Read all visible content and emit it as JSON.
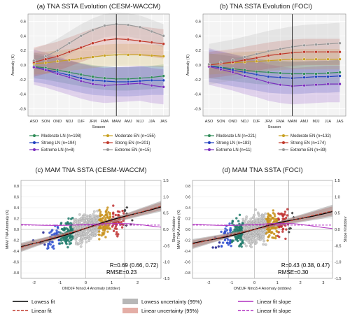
{
  "chart_data": [
    {
      "id": "a",
      "type": "line",
      "title": "(a) TNA SSTA Evolution (CESM-WACCM)",
      "xlabel": "Season",
      "ylabel": "Anomaly (K)",
      "categories": [
        "ASO",
        "SON",
        "OND",
        "NDJ",
        "DJF",
        "JFM",
        "FMA",
        "MAM",
        "AMJ",
        "MJJ",
        "JJA",
        "JAS"
      ],
      "ylim": [
        -0.7,
        0.7
      ],
      "yticks": [
        -0.6,
        -0.4,
        -0.2,
        0.0,
        0.2,
        0.4,
        0.6
      ],
      "vline_at": "MAM",
      "series": [
        {
          "name": "Moderate LN (n=198)",
          "color": "#2e8b57",
          "values": [
            -0.02,
            -0.04,
            -0.07,
            -0.1,
            -0.13,
            -0.16,
            -0.18,
            -0.19,
            -0.19,
            -0.18,
            -0.17,
            -0.15
          ],
          "spread": 0.16
        },
        {
          "name": "Strong LN (n=194)",
          "color": "#1f3fbf",
          "values": [
            -0.03,
            -0.06,
            -0.1,
            -0.14,
            -0.18,
            -0.21,
            -0.22,
            -0.23,
            -0.23,
            -0.22,
            -0.21,
            -0.21
          ],
          "spread": 0.2
        },
        {
          "name": "Extreme LN (n=8)",
          "color": "#7b2fbe",
          "values": [
            -0.03,
            -0.07,
            -0.12,
            -0.17,
            -0.22,
            -0.26,
            -0.28,
            -0.27,
            -0.26,
            -0.25,
            -0.28,
            -0.3
          ],
          "spread": 0.24
        },
        {
          "name": "Moderate EN (n=155)",
          "color": "#c8a020",
          "values": [
            0.02,
            0.03,
            0.05,
            0.07,
            0.09,
            0.11,
            0.13,
            0.14,
            0.14,
            0.14,
            0.13,
            0.12
          ],
          "spread": 0.15
        },
        {
          "name": "Strong EN (n=201)",
          "color": "#c0392b",
          "values": [
            0.04,
            0.08,
            0.12,
            0.18,
            0.24,
            0.3,
            0.34,
            0.36,
            0.35,
            0.33,
            0.31,
            0.29
          ],
          "spread": 0.2
        },
        {
          "name": "Extreme EN (n=15)",
          "color": "#999999",
          "values": [
            0.06,
            0.12,
            0.2,
            0.3,
            0.4,
            0.48,
            0.54,
            0.56,
            0.55,
            0.52,
            0.46,
            0.4
          ],
          "spread": 0.16
        }
      ]
    },
    {
      "id": "b",
      "type": "line",
      "title": "(b) TNA SSTA Evolution (FOCI)",
      "xlabel": "Season",
      "ylabel": "Anomaly (K)",
      "categories": [
        "ASO",
        "SON",
        "OND",
        "NDJ",
        "DJF",
        "JFM",
        "FMA",
        "MAM",
        "AMJ",
        "MJJ",
        "JJA",
        "JAS"
      ],
      "ylim": [
        -0.7,
        0.7
      ],
      "yticks": [
        -0.6,
        -0.4,
        -0.2,
        0.0,
        0.2,
        0.4,
        0.6
      ],
      "vline_at": "MAM",
      "series": [
        {
          "name": "Moderate LN (n=221)",
          "color": "#2e8b57",
          "values": [
            -0.01,
            -0.03,
            -0.05,
            -0.07,
            -0.09,
            -0.1,
            -0.11,
            -0.12,
            -0.12,
            -0.12,
            -0.11,
            -0.1
          ],
          "spread": 0.17
        },
        {
          "name": "Strong LN (n=183)",
          "color": "#1f3fbf",
          "values": [
            -0.01,
            -0.04,
            -0.07,
            -0.1,
            -0.13,
            -0.16,
            -0.17,
            -0.18,
            -0.17,
            -0.16,
            -0.16,
            -0.15
          ],
          "spread": 0.22
        },
        {
          "name": "Extreme LN (n=11)",
          "color": "#7b2fbe",
          "values": [
            -0.02,
            -0.06,
            -0.1,
            -0.15,
            -0.19,
            -0.24,
            -0.27,
            -0.29,
            -0.28,
            -0.27,
            -0.26,
            -0.26
          ],
          "spread": 0.25
        },
        {
          "name": "Moderate EN (n=132)",
          "color": "#c8a020",
          "values": [
            0.01,
            0.02,
            0.03,
            0.04,
            0.05,
            0.06,
            0.07,
            0.08,
            0.08,
            0.08,
            0.08,
            0.08
          ],
          "spread": 0.14
        },
        {
          "name": "Strong EN (n=174)",
          "color": "#c0392b",
          "values": [
            0.0,
            0.02,
            0.04,
            0.07,
            0.1,
            0.13,
            0.15,
            0.17,
            0.18,
            0.18,
            0.18,
            0.18
          ],
          "spread": 0.18
        },
        {
          "name": "Extreme EN (n=39)",
          "color": "#999999",
          "values": [
            0.01,
            0.04,
            0.07,
            0.11,
            0.15,
            0.19,
            0.22,
            0.25,
            0.27,
            0.28,
            0.29,
            0.3
          ],
          "spread": 0.28
        }
      ]
    },
    {
      "id": "c",
      "type": "scatter",
      "title": "(c) MAM TNA SSTA (CESM-WACCM)",
      "xlabel": "ONDJF Nino3.4 Anomaly (stddev)",
      "ylabel": "MAM TNA Anomaly (K)",
      "ylabel_right": "Slope K/stddev",
      "xlim": [
        -2.5,
        2.9
      ],
      "xticks": [
        -2,
        -1,
        0,
        1,
        2
      ],
      "ylim": [
        -0.9,
        0.9
      ],
      "yticks": [
        -0.8,
        -0.6,
        -0.4,
        -0.2,
        0.0,
        0.2,
        0.4,
        0.6,
        0.8
      ],
      "y2lim": [
        -1.5,
        1.5
      ],
      "y2ticks": [
        -1.5,
        -1.0,
        -0.5,
        0.0,
        0.5,
        1.0,
        1.5
      ],
      "slope": 0.14,
      "intercept": 0.02,
      "noise": 0.2,
      "slope_curve_value": 0.15,
      "annotation_r": "R=0.69 (0.66, 0.72)",
      "annotation_rmse": "RMSE=0.23"
    },
    {
      "id": "d",
      "type": "scatter",
      "title": "(d) MAM TNA SSTA (FOCI)",
      "xlabel": "ONDJF Nino3.4 Anomaly (stddev)",
      "ylabel": "MAM TNA Anomaly (K)",
      "ylabel_right": "Slope K/stddev",
      "xlim": [
        -2.7,
        3.4
      ],
      "xticks": [
        -2,
        -1,
        0,
        1,
        2,
        3
      ],
      "ylim": [
        -0.9,
        0.9
      ],
      "yticks": [
        -0.8,
        -0.6,
        -0.4,
        -0.2,
        0.0,
        0.2,
        0.4,
        0.6,
        0.8
      ],
      "y2lim": [
        -1.5,
        1.5
      ],
      "y2ticks": [
        -1.5,
        -1.0,
        -0.5,
        0.0,
        0.5,
        1.0,
        1.5
      ],
      "slope": 0.1,
      "intercept": 0.0,
      "noise": 0.22,
      "slope_curve_value": 0.15,
      "annotation_r": "R=0.43 (0.38, 0.47)",
      "annotation_rmse": "RMSE=0.30"
    }
  ],
  "scatter_class_colors": {
    "extreme_ln": "#1a1a8c",
    "strong_ln": "#3050d0",
    "moderate_ln": "#1f7a6a",
    "neutral": "#cccccc",
    "moderate_en": "#c8901a",
    "strong_en": "#c03030",
    "extreme_en": "#444444"
  },
  "bottom_legend": [
    {
      "label": "Lowess fit",
      "kind": "line",
      "color": "#000000",
      "dash": false
    },
    {
      "label": "Lowess uncertainty (95%)",
      "kind": "patch",
      "color": "#999999"
    },
    {
      "label": "Linear fit slope",
      "kind": "line",
      "color": "#b030c0",
      "dash": false
    },
    {
      "label": "Linear fit",
      "kind": "line",
      "color": "#c0392b",
      "dash": true
    },
    {
      "label": "Linear uncertainty (95%)",
      "kind": "patch",
      "color": "#d98b80"
    },
    {
      "label": "Linear fit slope",
      "kind": "line",
      "color": "#b030c0",
      "dash": true
    }
  ]
}
